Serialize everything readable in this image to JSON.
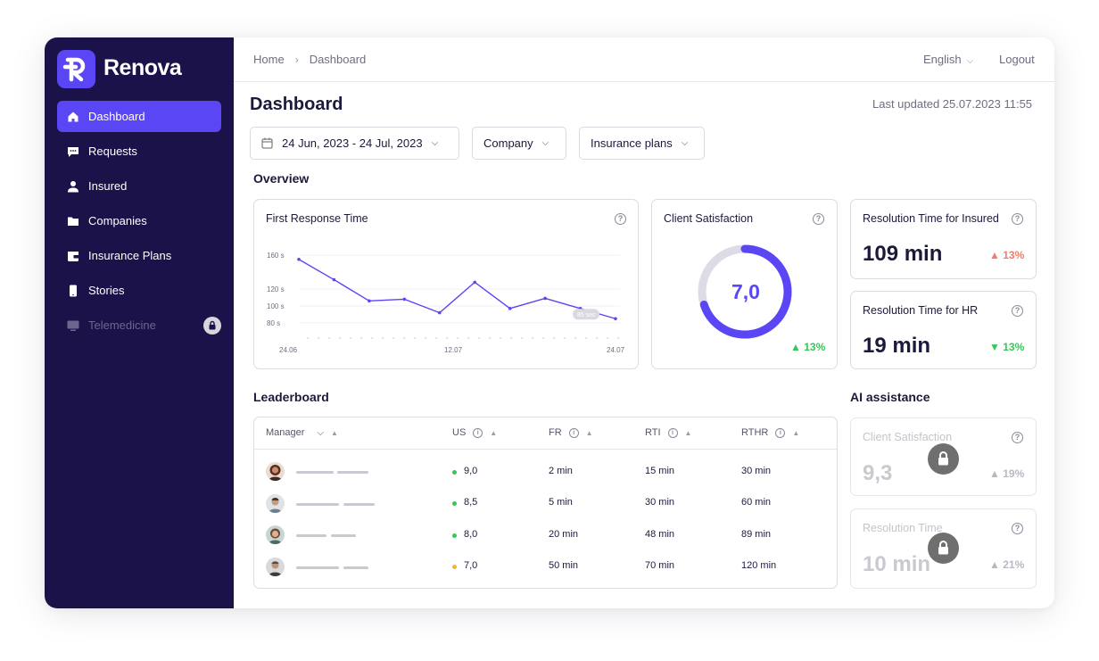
{
  "brand": {
    "name": "Renova",
    "logo_icon": "renova-logo-icon"
  },
  "sidebar": {
    "items": [
      {
        "label": "Dashboard",
        "icon": "home-icon",
        "active": true
      },
      {
        "label": "Requests",
        "icon": "chat-icon"
      },
      {
        "label": "Insured",
        "icon": "user-icon"
      },
      {
        "label": "Companies",
        "icon": "folder-icon"
      },
      {
        "label": "Insurance Plans",
        "icon": "wallet-icon"
      },
      {
        "label": "Stories",
        "icon": "phone-icon"
      },
      {
        "label": "Telemedicine",
        "icon": "monitor-icon",
        "locked": true
      }
    ]
  },
  "topbar": {
    "breadcrumb": [
      "Home",
      "Dashboard"
    ],
    "language": "English",
    "logout": "Logout"
  },
  "page": {
    "title": "Dashboard",
    "last_updated": "Last updated 25.07.2023 11:55"
  },
  "filters": {
    "date_range": "24 Jun, 2023 - 24 Jul, 2023",
    "company": "Company",
    "plans": "Insurance plans"
  },
  "overview": {
    "title": "Overview",
    "first_response": {
      "title": "First Response Time",
      "badge": "85 sec"
    },
    "client_satisfaction": {
      "title": "Client Satisfaction",
      "value": "7,0",
      "fraction": 0.7,
      "delta": "13%",
      "delta_dir": "up"
    },
    "resolution_insured": {
      "title": "Resolution Time for Insured",
      "value": "109 min",
      "delta": "13%",
      "delta_dir": "up"
    },
    "resolution_hr": {
      "title": "Resolution Time for HR",
      "value": "19 min",
      "delta": "13%",
      "delta_dir": "down"
    }
  },
  "chart_data": {
    "type": "line",
    "title": "First Response Time",
    "x_ticks": [
      "24.06",
      "12.07",
      "24.07"
    ],
    "y_ticks": [
      "160 s",
      "120 s",
      "100 s",
      "80 s"
    ],
    "ylim": [
      80,
      160
    ],
    "series": [
      {
        "values": [
          155,
          131,
          106,
          108,
          92,
          128,
          97,
          109,
          97,
          85
        ]
      }
    ],
    "grid": true
  },
  "leaderboard": {
    "title": "Leaderboard",
    "columns": [
      "Manager",
      "US",
      "FR",
      "RTI",
      "RTHR"
    ],
    "rows": [
      {
        "us": "9,0",
        "status": "green",
        "fr": "2 min",
        "rti": "15 min",
        "rthr": "30 min"
      },
      {
        "us": "8,5",
        "status": "green",
        "fr": "5 min",
        "rti": "30 min",
        "rthr": "60 min"
      },
      {
        "us": "8,0",
        "status": "green",
        "fr": "20 min",
        "rti": "48 min",
        "rthr": "89 min"
      },
      {
        "us": "7,0",
        "status": "yellow",
        "fr": "50 min",
        "rti": "70 min",
        "rthr": "120 min"
      }
    ]
  },
  "ai": {
    "title": "AI assistance",
    "cards": [
      {
        "title": "Client Satisfaction",
        "value": "9,3",
        "delta": "19%"
      },
      {
        "title": "Resolution Time",
        "value": "10 min",
        "delta": "21%"
      }
    ]
  },
  "colors": {
    "sidebar": "#1a1248",
    "accent": "#5b46f5",
    "positive": "#35c759",
    "negative": "#f47b67",
    "warning": "#f5b625"
  }
}
